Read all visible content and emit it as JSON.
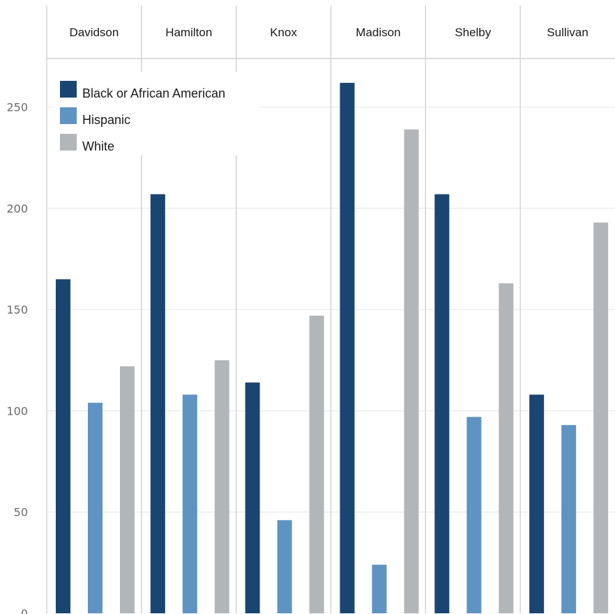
{
  "chart_data": {
    "type": "bar",
    "facets": [
      "Davidson",
      "Hamilton",
      "Knox",
      "Madison",
      "Shelby",
      "Sullivan"
    ],
    "series": [
      {
        "name": "Black or African American",
        "color": "#1a4570",
        "values": [
          165,
          207,
          114,
          262,
          207,
          108
        ]
      },
      {
        "name": "Hispanic",
        "color": "#5f93c2",
        "values": [
          104,
          108,
          46,
          24,
          97,
          93
        ]
      },
      {
        "name": "White",
        "color": "#b3b6b8",
        "values": [
          122,
          125,
          147,
          239,
          163,
          193
        ]
      }
    ],
    "y_ticks": [
      0,
      50,
      100,
      150,
      200,
      250
    ],
    "ylim": [
      0,
      274
    ],
    "grid": true,
    "legend_position": "top-left"
  }
}
